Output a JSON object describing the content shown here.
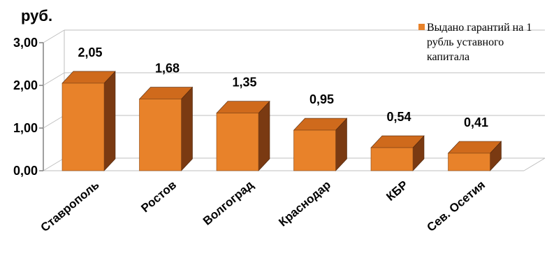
{
  "chart_data": {
    "type": "bar",
    "unit_label": "руб.",
    "categories": [
      "Ставрополь",
      "Ростов",
      "Волгоград",
      "Краснодар",
      "КБР",
      "Сев. Осетия"
    ],
    "series": [
      {
        "name": "Выдано гарантий на 1 рубль уставного капитала",
        "values": [
          2.05,
          1.68,
          1.35,
          0.95,
          0.54,
          0.41
        ],
        "labels": [
          "2,05",
          "1,68",
          "1,35",
          "0,95",
          "0,54",
          "0,41"
        ],
        "color": "#e8822a"
      }
    ],
    "ylim": [
      0,
      3
    ],
    "yticks": [
      0,
      1,
      2,
      3
    ],
    "ytick_labels": [
      "0,00",
      "1,00",
      "2,00",
      "3,00"
    ],
    "grid": true,
    "legend": {
      "position": "top-right",
      "lines": [
        "Выдано гарантий на 1",
        "рубль уставного",
        "капитала"
      ]
    }
  }
}
